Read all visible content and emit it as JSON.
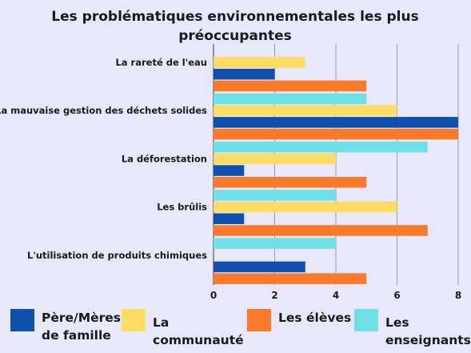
{
  "chart_data": {
    "type": "bar",
    "orientation": "horizontal",
    "title": "Les problématiques environnementales les plus préoccupantes",
    "categories": [
      "La rareté de l'eau",
      "La mauvaise gestion des déchets solides",
      "La déforestation",
      "Les brûlis",
      "L'utilisation de produits chimiques"
    ],
    "series": [
      {
        "name": "Les enseignants",
        "color": "#6fe0e6",
        "values": [
          0,
          5,
          7,
          4,
          4
        ]
      },
      {
        "name": "La communauté",
        "color": "#fcdc62",
        "values": [
          3,
          6,
          4,
          6,
          0
        ]
      },
      {
        "name": "Père/Mères de famille",
        "color": "#0f4fad",
        "values": [
          2,
          8,
          1,
          1,
          3
        ]
      },
      {
        "name": "Les élèves",
        "color": "#fb7a2a",
        "values": [
          5,
          8,
          5,
          7,
          5
        ]
      }
    ],
    "xlim": [
      0,
      8
    ],
    "xticks": [
      "0",
      "2",
      "4",
      "6",
      "8"
    ],
    "grid": true,
    "legend_position": "bottom"
  },
  "legend": [
    {
      "label": "Père/Mères\nde famille",
      "color": "#0f4fad"
    },
    {
      "label": "La\ncommunauté",
      "color": "#fcdc62"
    },
    {
      "label": "Les élèves",
      "color": "#fb7a2a"
    },
    {
      "label": "Les\nenseignants",
      "color": "#6fe0e6"
    }
  ]
}
